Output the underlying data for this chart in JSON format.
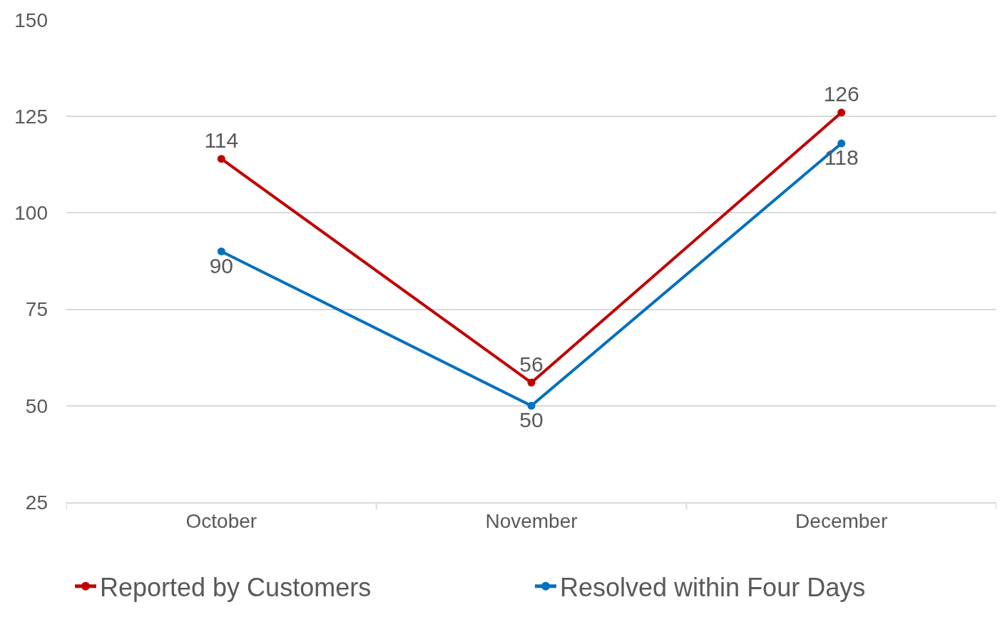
{
  "chart_data": {
    "type": "line",
    "categories": [
      "October",
      "November",
      "December"
    ],
    "series": [
      {
        "name": "Reported by Customers",
        "color": "#c00000",
        "values": [
          114,
          56,
          126
        ]
      },
      {
        "name": "Resolved within Four Days",
        "color": "#0070c0",
        "values": [
          90,
          50,
          118
        ]
      }
    ],
    "ylim": [
      25,
      150
    ],
    "yticks": [
      25,
      50,
      75,
      100,
      125,
      150
    ],
    "grid": "y",
    "legend": "bottom",
    "marker": "circle",
    "line_style": "solid",
    "data_labels": true
  }
}
